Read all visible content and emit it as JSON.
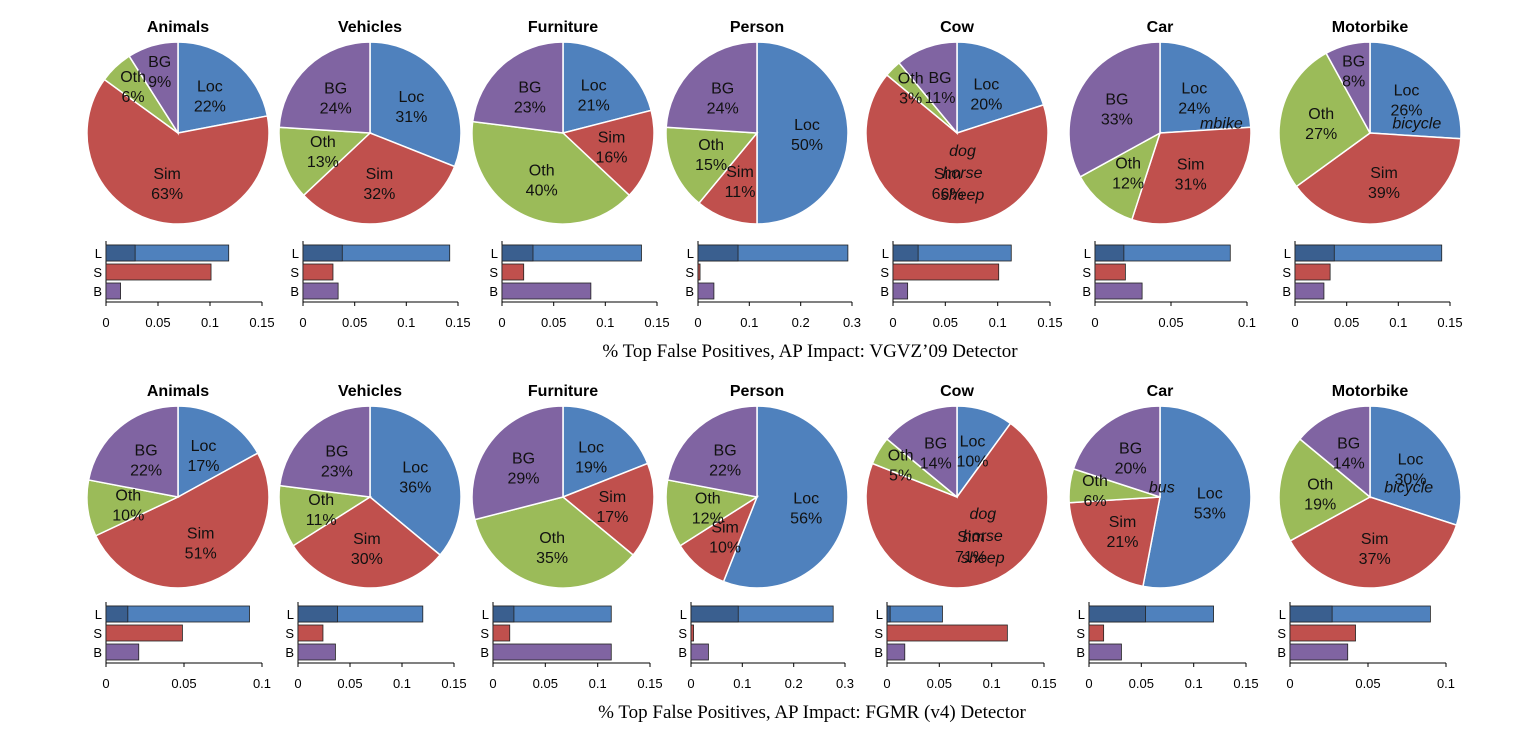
{
  "colors": {
    "loc": "#4f81bd",
    "loc_dark": "#3a5f8f",
    "sim": "#c0504d",
    "oth": "#9bbb59",
    "bg": "#8064a2"
  },
  "chart_data": [
    {
      "caption": "% Top False Positives, AP Impact: VGVZ’09 Detector",
      "panels": [
        {
          "title": "Animals",
          "pie": {
            "type": "pie",
            "slices": [
              {
                "key": "loc",
                "name": "Loc",
                "value": 22,
                "label": "22%"
              },
              {
                "key": "sim",
                "name": "Sim",
                "value": 63,
                "label": "63%"
              },
              {
                "key": "oth",
                "name": "Oth",
                "value": 6,
                "label": "6%"
              },
              {
                "key": "bg",
                "name": "BG",
                "value": 9,
                "label": "9%"
              }
            ]
          },
          "bars": {
            "type": "bar",
            "xlim": [
              0,
              0.15
            ],
            "ticks": [
              "0",
              "0.05",
              "0.1",
              "0.15"
            ],
            "tickvals": [
              0,
              0.05,
              0.1,
              0.15
            ],
            "L": 0.118,
            "L_dark": 0.028,
            "S": 0.101,
            "B": 0.014
          }
        },
        {
          "title": "Vehicles",
          "pie": {
            "type": "pie",
            "slices": [
              {
                "key": "loc",
                "name": "Loc",
                "value": 31,
                "label": "31%"
              },
              {
                "key": "sim",
                "name": "Sim",
                "value": 32,
                "label": "32%"
              },
              {
                "key": "oth",
                "name": "Oth",
                "value": 13,
                "label": "13%"
              },
              {
                "key": "bg",
                "name": "BG",
                "value": 24,
                "label": "24%"
              }
            ]
          },
          "bars": {
            "type": "bar",
            "xlim": [
              0,
              0.15
            ],
            "ticks": [
              "0",
              "0.05",
              "0.1",
              "0.15"
            ],
            "tickvals": [
              0,
              0.05,
              0.1,
              0.15
            ],
            "L": 0.142,
            "L_dark": 0.038,
            "S": 0.029,
            "B": 0.034
          }
        },
        {
          "title": "Furniture",
          "pie": {
            "type": "pie",
            "slices": [
              {
                "key": "loc",
                "name": "Loc",
                "value": 21,
                "label": "21%"
              },
              {
                "key": "sim",
                "name": "Sim",
                "value": 16,
                "label": "16%"
              },
              {
                "key": "oth",
                "name": "Oth",
                "value": 40,
                "label": "40%"
              },
              {
                "key": "bg",
                "name": "BG",
                "value": 23,
                "label": "23%"
              }
            ]
          },
          "bars": {
            "type": "bar",
            "xlim": [
              0,
              0.15
            ],
            "ticks": [
              "0",
              "0.05",
              "0.1",
              "0.15"
            ],
            "tickvals": [
              0,
              0.05,
              0.1,
              0.15
            ],
            "L": 0.135,
            "L_dark": 0.03,
            "S": 0.021,
            "B": 0.086
          }
        },
        {
          "title": "Person",
          "pie": {
            "type": "pie",
            "slices": [
              {
                "key": "loc",
                "name": "Loc",
                "value": 50,
                "label": "50%"
              },
              {
                "key": "sim",
                "name": "Sim",
                "value": 11,
                "label": "11%"
              },
              {
                "key": "oth",
                "name": "Oth",
                "value": 15,
                "label": "15%"
              },
              {
                "key": "bg",
                "name": "BG",
                "value": 24,
                "label": "24%"
              }
            ]
          },
          "bars": {
            "type": "bar",
            "xlim": [
              0,
              0.3
            ],
            "ticks": [
              "0",
              "0.1",
              "0.2",
              "0.3"
            ],
            "tickvals": [
              0,
              0.1,
              0.2,
              0.3
            ],
            "L": 0.292,
            "L_dark": 0.078,
            "S": 0.004,
            "B": 0.031
          }
        },
        {
          "title": "Cow",
          "pie": {
            "type": "pie",
            "slices": [
              {
                "key": "loc",
                "name": "Loc",
                "value": 20,
                "label": "20%"
              },
              {
                "key": "sim",
                "name": "Sim",
                "value": 66,
                "label": "66%"
              },
              {
                "key": "oth",
                "name": "Oth",
                "value": 3,
                "label": "3%"
              },
              {
                "key": "bg",
                "name": "BG",
                "value": 11,
                "label": "11%"
              }
            ],
            "extra": [
              "dog",
              "horse",
              "sheep"
            ]
          },
          "bars": {
            "type": "bar",
            "xlim": [
              0,
              0.15
            ],
            "ticks": [
              "0",
              "0.05",
              "0.1",
              "0.15"
            ],
            "tickvals": [
              0,
              0.05,
              0.1,
              0.15
            ],
            "L": 0.113,
            "L_dark": 0.024,
            "S": 0.101,
            "B": 0.014
          }
        },
        {
          "title": "Car",
          "pie": {
            "type": "pie",
            "slices": [
              {
                "key": "loc",
                "name": "Loc",
                "value": 24,
                "label": "24%"
              },
              {
                "key": "sim",
                "name": "Sim",
                "value": 31,
                "label": "31%"
              },
              {
                "key": "oth",
                "name": "Oth",
                "value": 12,
                "label": "12%"
              },
              {
                "key": "bg",
                "name": "BG",
                "value": 33,
                "label": "33%"
              }
            ],
            "extra": [
              "mbike"
            ]
          },
          "bars": {
            "type": "bar",
            "xlim": [
              0,
              0.1
            ],
            "ticks": [
              "0",
              "0.05",
              "0.1"
            ],
            "tickvals": [
              0,
              0.05,
              0.1
            ],
            "L": 0.089,
            "L_dark": 0.019,
            "S": 0.02,
            "B": 0.031
          }
        },
        {
          "title": "Motorbike",
          "pie": {
            "type": "pie",
            "slices": [
              {
                "key": "loc",
                "name": "Loc",
                "value": 26,
                "label": "26%"
              },
              {
                "key": "sim",
                "name": "Sim",
                "value": 39,
                "label": "39%"
              },
              {
                "key": "oth",
                "name": "Oth",
                "value": 27,
                "label": "27%"
              },
              {
                "key": "bg",
                "name": "BG",
                "value": 8,
                "label": "8%"
              }
            ],
            "extra": [
              "bicycle"
            ]
          },
          "bars": {
            "type": "bar",
            "xlim": [
              0,
              0.15
            ],
            "ticks": [
              "0",
              "0.05",
              "0.1",
              "0.15"
            ],
            "tickvals": [
              0,
              0.05,
              0.1,
              0.15
            ],
            "L": 0.142,
            "L_dark": 0.038,
            "S": 0.034,
            "B": 0.028
          }
        }
      ]
    },
    {
      "caption": "% Top False Positives, AP Impact: FGMR (v4) Detector",
      "panels": [
        {
          "title": "Animals",
          "pie": {
            "type": "pie",
            "slices": [
              {
                "key": "loc",
                "name": "Loc",
                "value": 17,
                "label": "17%"
              },
              {
                "key": "sim",
                "name": "Sim",
                "value": 51,
                "label": "51%"
              },
              {
                "key": "oth",
                "name": "Oth",
                "value": 10,
                "label": "10%"
              },
              {
                "key": "bg",
                "name": "BG",
                "value": 22,
                "label": "22%"
              }
            ]
          },
          "bars": {
            "type": "bar",
            "xlim": [
              0,
              0.1
            ],
            "ticks": [
              "0",
              "0.05",
              "0.1"
            ],
            "tickvals": [
              0,
              0.05,
              0.1
            ],
            "L": 0.092,
            "L_dark": 0.014,
            "S": 0.049,
            "B": 0.021
          }
        },
        {
          "title": "Vehicles",
          "pie": {
            "type": "pie",
            "slices": [
              {
                "key": "loc",
                "name": "Loc",
                "value": 36,
                "label": "36%"
              },
              {
                "key": "sim",
                "name": "Sim",
                "value": 30,
                "label": "30%"
              },
              {
                "key": "oth",
                "name": "Oth",
                "value": 11,
                "label": "11%"
              },
              {
                "key": "bg",
                "name": "BG",
                "value": 23,
                "label": "23%"
              }
            ]
          },
          "bars": {
            "type": "bar",
            "xlim": [
              0,
              0.15
            ],
            "ticks": [
              "0",
              "0.05",
              "0.1",
              "0.15"
            ],
            "tickvals": [
              0,
              0.05,
              0.1,
              0.15
            ],
            "L": 0.12,
            "L_dark": 0.038,
            "S": 0.024,
            "B": 0.036
          }
        },
        {
          "title": "Furniture",
          "pie": {
            "type": "pie",
            "slices": [
              {
                "key": "loc",
                "name": "Loc",
                "value": 19,
                "label": "19%"
              },
              {
                "key": "sim",
                "name": "Sim",
                "value": 17,
                "label": "17%"
              },
              {
                "key": "oth",
                "name": "Oth",
                "value": 35,
                "label": "35%"
              },
              {
                "key": "bg",
                "name": "BG",
                "value": 29,
                "label": "29%"
              }
            ]
          },
          "bars": {
            "type": "bar",
            "xlim": [
              0,
              0.15
            ],
            "ticks": [
              "0",
              "0.05",
              "0.1",
              "0.15"
            ],
            "tickvals": [
              0,
              0.05,
              0.1,
              0.15
            ],
            "L": 0.113,
            "L_dark": 0.02,
            "S": 0.016,
            "B": 0.113
          }
        },
        {
          "title": "Person",
          "pie": {
            "type": "pie",
            "slices": [
              {
                "key": "loc",
                "name": "Loc",
                "value": 56,
                "label": "56%"
              },
              {
                "key": "sim",
                "name": "Sim",
                "value": 10,
                "label": "10%"
              },
              {
                "key": "oth",
                "name": "Oth",
                "value": 12,
                "label": "12%"
              },
              {
                "key": "bg",
                "name": "BG",
                "value": 22,
                "label": "22%"
              }
            ]
          },
          "bars": {
            "type": "bar",
            "xlim": [
              0,
              0.3
            ],
            "ticks": [
              "0",
              "0.1",
              "0.2",
              "0.3"
            ],
            "tickvals": [
              0,
              0.1,
              0.2,
              0.3
            ],
            "L": 0.277,
            "L_dark": 0.092,
            "S": 0.005,
            "B": 0.034
          }
        },
        {
          "title": "Cow",
          "pie": {
            "type": "pie",
            "slices": [
              {
                "key": "loc",
                "name": "Loc",
                "value": 10,
                "label": "10%"
              },
              {
                "key": "sim",
                "name": "Sim",
                "value": 71,
                "label": "71%"
              },
              {
                "key": "oth",
                "name": "Oth",
                "value": 5,
                "label": "5%"
              },
              {
                "key": "bg",
                "name": "BG",
                "value": 14,
                "label": "14%"
              }
            ],
            "extra": [
              "dog",
              "horse",
              "sheep"
            ]
          },
          "bars": {
            "type": "bar",
            "xlim": [
              0,
              0.15
            ],
            "ticks": [
              "0",
              "0.05",
              "0.1",
              "0.15"
            ],
            "tickvals": [
              0,
              0.05,
              0.1,
              0.15
            ],
            "L": 0.053,
            "L_dark": 0.003,
            "S": 0.115,
            "B": 0.017
          }
        },
        {
          "title": "Car",
          "pie": {
            "type": "pie",
            "slices": [
              {
                "key": "loc",
                "name": "Loc",
                "value": 53,
                "label": "53%"
              },
              {
                "key": "sim",
                "name": "Sim",
                "value": 21,
                "label": "21%"
              },
              {
                "key": "oth",
                "name": "Oth",
                "value": 6,
                "label": "6%"
              },
              {
                "key": "bg",
                "name": "BG",
                "value": 20,
                "label": "20%"
              }
            ],
            "extra": [
              "bus"
            ]
          },
          "bars": {
            "type": "bar",
            "xlim": [
              0,
              0.15
            ],
            "ticks": [
              "0",
              "0.05",
              "0.1",
              "0.15"
            ],
            "tickvals": [
              0,
              0.05,
              0.1,
              0.15
            ],
            "L": 0.119,
            "L_dark": 0.054,
            "S": 0.014,
            "B": 0.031
          }
        },
        {
          "title": "Motorbike",
          "pie": {
            "type": "pie",
            "slices": [
              {
                "key": "loc",
                "name": "Loc",
                "value": 30,
                "label": "30%"
              },
              {
                "key": "sim",
                "name": "Sim",
                "value": 37,
                "label": "37%"
              },
              {
                "key": "oth",
                "name": "Oth",
                "value": 19,
                "label": "19%"
              },
              {
                "key": "bg",
                "name": "BG",
                "value": 14,
                "label": "14%"
              }
            ],
            "extra": [
              "bicycle"
            ]
          },
          "bars": {
            "type": "bar",
            "xlim": [
              0,
              0.1
            ],
            "ticks": [
              "0",
              "0.05",
              "0.1"
            ],
            "tickvals": [
              0,
              0.05,
              0.1
            ],
            "L": 0.09,
            "L_dark": 0.027,
            "S": 0.042,
            "B": 0.037
          }
        }
      ]
    }
  ],
  "bar_labels": [
    "L",
    "S",
    "B"
  ]
}
